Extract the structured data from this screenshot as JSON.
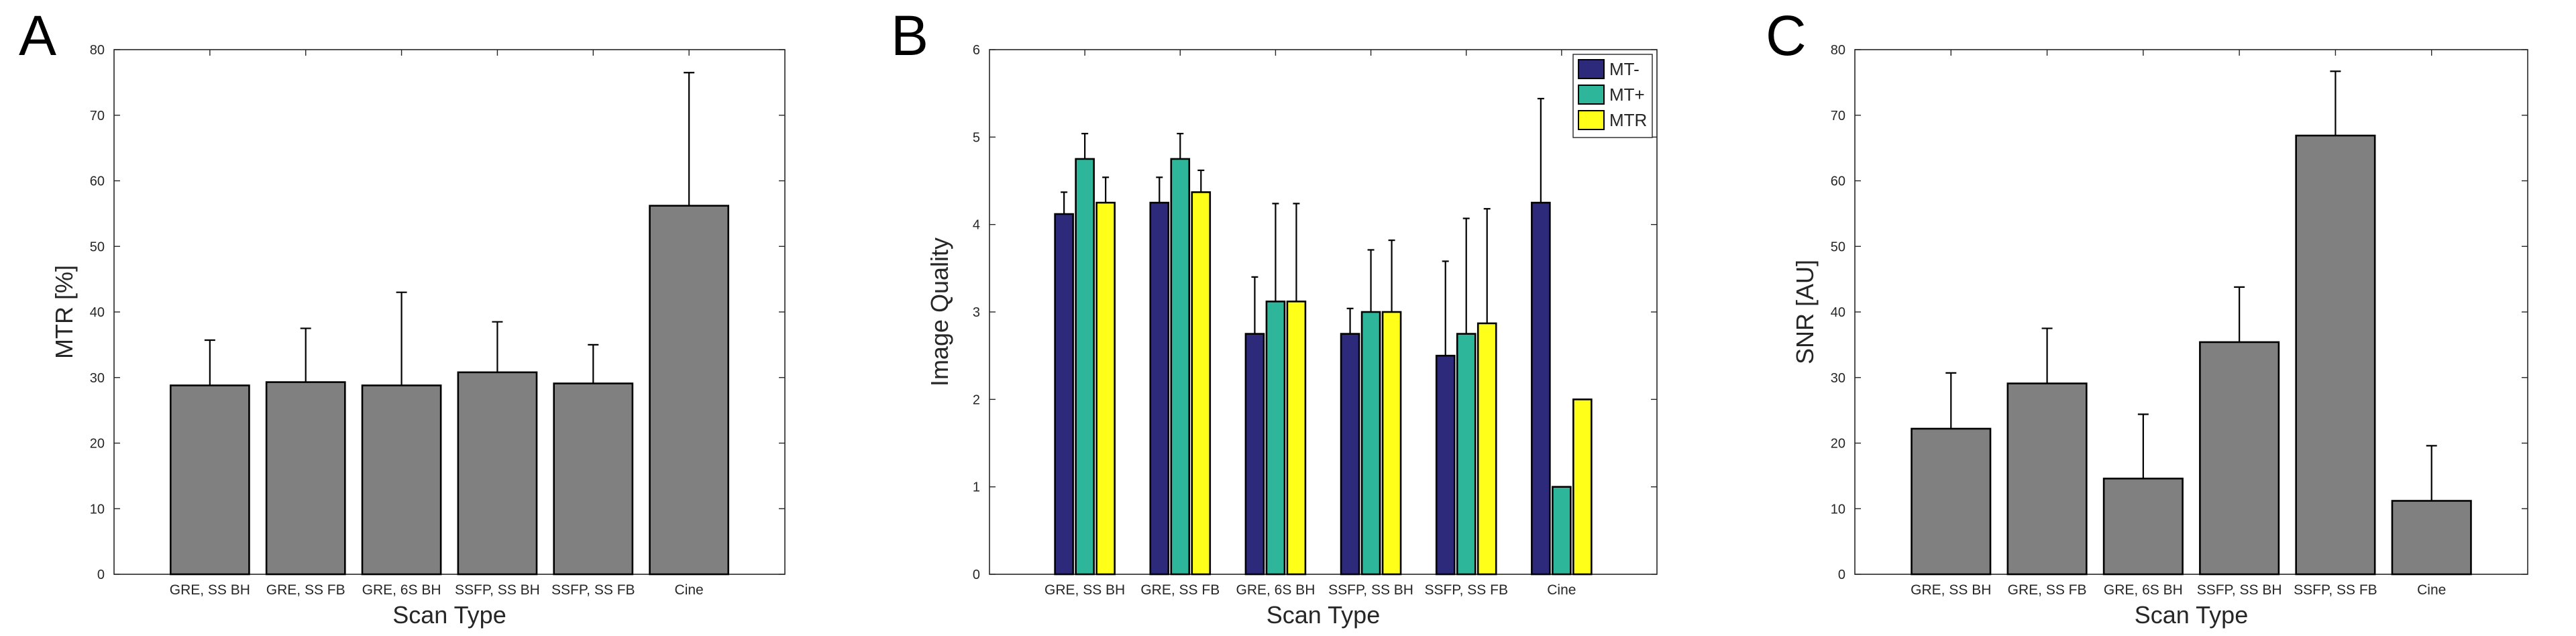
{
  "chart_data": [
    {
      "type": "bar",
      "panel_label": "A",
      "categories": [
        "GRE, SS BH",
        "GRE, SS FB",
        "GRE, 6S BH",
        "SSFP, SS BH",
        "SSFP, SS FB",
        "Cine"
      ],
      "series": [
        {
          "values": [
            28.8,
            29.3,
            28.8,
            30.8,
            29.1,
            56.2
          ],
          "error": [
            6.9,
            8.2,
            14.2,
            7.7,
            5.9,
            20.3
          ]
        }
      ],
      "xlabel": "Scan Type",
      "ylabel": "MTR [%]",
      "ylim": [
        0,
        80
      ],
      "yticks": [
        0,
        10,
        20,
        30,
        40,
        50,
        60,
        70,
        80
      ],
      "bar_color": "#808080",
      "error_bars": true,
      "legend": "none"
    },
    {
      "type": "bar",
      "panel_label": "B",
      "categories": [
        "GRE, SS BH",
        "GRE, SS FB",
        "GRE, 6S BH",
        "SSFP, SS BH",
        "SSFP, SS FB",
        "Cine"
      ],
      "series": [
        {
          "name": "MT-",
          "color": "#2e2a7b",
          "values": [
            4.12,
            4.25,
            2.75,
            2.75,
            2.5,
            4.25
          ],
          "error": [
            0.25,
            0.29,
            0.65,
            0.29,
            1.08,
            1.19
          ]
        },
        {
          "name": "MT+",
          "color": "#2db69a",
          "values": [
            4.75,
            4.75,
            3.12,
            3.0,
            2.75,
            1.0
          ],
          "error": [
            0.29,
            0.29,
            1.12,
            0.71,
            1.32,
            0
          ]
        },
        {
          "name": "MTR",
          "color": "#ffff1a",
          "values": [
            4.25,
            4.37,
            3.12,
            3.0,
            2.87,
            2.0
          ],
          "error": [
            0.29,
            0.25,
            1.12,
            0.82,
            1.31,
            0
          ]
        }
      ],
      "xlabel": "Scan Type",
      "ylabel": "Image Quality",
      "ylim": [
        0,
        6
      ],
      "yticks": [
        0,
        1,
        2,
        3,
        4,
        5,
        6
      ],
      "error_bars": true,
      "legend": "top-right"
    },
    {
      "type": "bar",
      "panel_label": "C",
      "categories": [
        "GRE, SS BH",
        "GRE, SS FB",
        "GRE, 6S BH",
        "SSFP, SS BH",
        "SSFP, SS FB",
        "Cine"
      ],
      "series": [
        {
          "values": [
            22.2,
            29.1,
            14.6,
            35.4,
            66.9,
            11.2
          ],
          "error": [
            8.5,
            8.4,
            9.8,
            8.4,
            9.8,
            8.4
          ]
        }
      ],
      "xlabel": "Scan Type",
      "ylabel": "SNR [AU]",
      "ylim": [
        0,
        80
      ],
      "yticks": [
        0,
        10,
        20,
        30,
        40,
        50,
        60,
        70,
        80
      ],
      "bar_color": "#808080",
      "error_bars": true,
      "legend": "none"
    }
  ]
}
